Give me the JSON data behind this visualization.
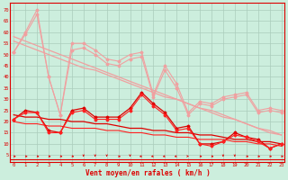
{
  "hours": [
    0,
    1,
    2,
    3,
    4,
    5,
    6,
    7,
    8,
    9,
    10,
    11,
    12,
    13,
    14,
    15,
    16,
    17,
    18,
    19,
    20,
    21,
    22,
    23
  ],
  "rafales_line": [
    51,
    60,
    70,
    40,
    23,
    55,
    55,
    52,
    48,
    47,
    50,
    51,
    32,
    45,
    37,
    24,
    29,
    28,
    31,
    32,
    33,
    25,
    26,
    25
  ],
  "rafales_second": [
    51,
    59,
    68,
    40,
    23,
    52,
    53,
    50,
    46,
    45,
    48,
    49,
    31,
    43,
    35,
    23,
    28,
    27,
    30,
    31,
    32,
    24,
    25,
    24
  ],
  "trend_light1": [
    58,
    56,
    54,
    52,
    50,
    48,
    46,
    44,
    42,
    40,
    38,
    36,
    34,
    32,
    30,
    28,
    26,
    25,
    23,
    21,
    19,
    17,
    16,
    14
  ],
  "trend_light2": [
    56,
    54,
    52,
    50,
    48,
    46,
    44,
    43,
    41,
    39,
    37,
    35,
    33,
    31,
    30,
    28,
    26,
    24,
    22,
    21,
    19,
    17,
    15,
    14
  ],
  "vent_line1": [
    21,
    25,
    24,
    16,
    15,
    25,
    26,
    22,
    22,
    22,
    26,
    33,
    28,
    24,
    17,
    18,
    10,
    10,
    11,
    15,
    13,
    12,
    8,
    10
  ],
  "vent_line2": [
    21,
    24,
    24,
    15,
    15,
    24,
    25,
    21,
    21,
    21,
    25,
    32,
    27,
    23,
    16,
    17,
    10,
    9,
    11,
    14,
    13,
    11,
    8,
    10
  ],
  "trend_dark1": [
    23,
    22,
    22,
    21,
    21,
    20,
    20,
    19,
    19,
    18,
    17,
    17,
    16,
    16,
    15,
    15,
    14,
    14,
    13,
    12,
    12,
    11,
    11,
    10
  ],
  "trend_dark2": [
    20,
    19,
    19,
    18,
    18,
    17,
    17,
    17,
    16,
    16,
    15,
    15,
    14,
    14,
    13,
    13,
    12,
    12,
    12,
    11,
    11,
    10,
    10,
    9
  ],
  "color_light": "#f0a0a0",
  "color_dark": "#dd0000",
  "color_dark2": "#ff2020",
  "bg_color": "#cceedd",
  "grid_color": "#aaccbb",
  "xlabel": "Vent moyen/en rafales ( km/h )",
  "ylabel_ticks": [
    5,
    10,
    15,
    20,
    25,
    30,
    35,
    40,
    45,
    50,
    55,
    60,
    65,
    70
  ],
  "ylim": [
    2,
    73
  ],
  "xlim": [
    -0.3,
    23.3
  ],
  "arrow_angles": [
    45,
    45,
    45,
    45,
    45,
    45,
    0,
    0,
    0,
    45,
    0,
    -45,
    -45,
    -45,
    -45,
    90,
    45,
    45,
    0,
    0,
    45,
    45,
    45,
    45
  ]
}
